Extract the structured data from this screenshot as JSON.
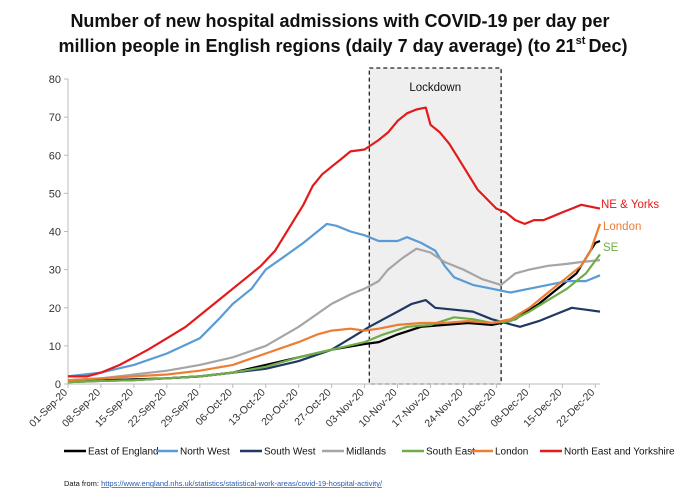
{
  "chart_data": {
    "type": "line",
    "title_lines": [
      "Number of new hospital admissions with COVID-19 per day per",
      "million people in English regions (daily 7 day average) (to 21",
      "st",
      "Dec)"
    ],
    "xlabel": "",
    "ylabel": "",
    "ylim": [
      0,
      80
    ],
    "yticks": [
      0,
      10,
      20,
      30,
      40,
      50,
      60,
      70,
      80
    ],
    "x_start": "01-Sep-20",
    "num_days": 113,
    "xtick_labels": [
      "01-Sep-20",
      "08-Sep-20",
      "15-Sep-20",
      "22-Sep-20",
      "29-Sep-20",
      "06-Oct-20",
      "13-Oct-20",
      "20-Oct-20",
      "27-Oct-20",
      "03-Nov-20",
      "10-Nov-20",
      "17-Nov-20",
      "24-Nov-20",
      "01-Dec-20",
      "08-Dec-20",
      "15-Dec-20",
      "22-Dec-20"
    ],
    "lockdown": {
      "label": "Lockdown",
      "start_day": 64,
      "end_day": 92
    },
    "series": [
      {
        "name": "East of England",
        "color": "#000000",
        "points": [
          [
            0,
            1
          ],
          [
            7,
            1
          ],
          [
            14,
            1.2
          ],
          [
            21,
            1.5
          ],
          [
            28,
            2
          ],
          [
            35,
            3
          ],
          [
            42,
            5
          ],
          [
            49,
            7
          ],
          [
            56,
            9
          ],
          [
            63,
            10.5
          ],
          [
            66,
            11
          ],
          [
            70,
            13
          ],
          [
            75,
            15
          ],
          [
            80,
            15.5
          ],
          [
            85,
            16
          ],
          [
            90,
            15.5
          ],
          [
            92,
            16
          ],
          [
            95,
            17
          ],
          [
            100,
            21
          ],
          [
            105,
            26
          ],
          [
            108,
            29
          ],
          [
            110,
            33
          ],
          [
            112,
            37
          ],
          [
            113,
            37.5
          ]
        ]
      },
      {
        "name": "North West",
        "color": "#5b9bd5",
        "points": [
          [
            0,
            2
          ],
          [
            7,
            3
          ],
          [
            14,
            5
          ],
          [
            21,
            8
          ],
          [
            28,
            12
          ],
          [
            32,
            17
          ],
          [
            35,
            21
          ],
          [
            39,
            25
          ],
          [
            42,
            30
          ],
          [
            46,
            33.5
          ],
          [
            50,
            37
          ],
          [
            53,
            40
          ],
          [
            55,
            42
          ],
          [
            57,
            41.5
          ],
          [
            60,
            40
          ],
          [
            63,
            39
          ],
          [
            66,
            37.5
          ],
          [
            70,
            37.5
          ],
          [
            72,
            38.5
          ],
          [
            75,
            37
          ],
          [
            78,
            35
          ],
          [
            80,
            31
          ],
          [
            82,
            28
          ],
          [
            86,
            26
          ],
          [
            90,
            25
          ],
          [
            94,
            24
          ],
          [
            98,
            25
          ],
          [
            102,
            26
          ],
          [
            106,
            27
          ],
          [
            110,
            27
          ],
          [
            113,
            28.5
          ]
        ]
      },
      {
        "name": "South West",
        "color": "#1f3864",
        "points": [
          [
            0,
            0.5
          ],
          [
            7,
            0.8
          ],
          [
            14,
            1
          ],
          [
            21,
            1.5
          ],
          [
            28,
            2
          ],
          [
            35,
            3
          ],
          [
            42,
            4
          ],
          [
            49,
            6
          ],
          [
            56,
            9
          ],
          [
            60,
            12
          ],
          [
            64,
            15
          ],
          [
            67,
            17
          ],
          [
            70,
            19
          ],
          [
            73,
            21
          ],
          [
            76,
            22
          ],
          [
            78,
            20
          ],
          [
            82,
            19.5
          ],
          [
            86,
            19
          ],
          [
            90,
            17
          ],
          [
            93,
            16
          ],
          [
            96,
            15
          ],
          [
            100,
            16.5
          ],
          [
            104,
            18.5
          ],
          [
            107,
            20
          ],
          [
            110,
            19.5
          ],
          [
            113,
            19
          ]
        ]
      },
      {
        "name": "Midlands",
        "color": "#a5a5a5",
        "points": [
          [
            0,
            1
          ],
          [
            7,
            1.5
          ],
          [
            14,
            2.5
          ],
          [
            21,
            3.5
          ],
          [
            28,
            5
          ],
          [
            35,
            7
          ],
          [
            42,
            10
          ],
          [
            49,
            15
          ],
          [
            56,
            21
          ],
          [
            60,
            23.5
          ],
          [
            63,
            25
          ],
          [
            66,
            27
          ],
          [
            68,
            30
          ],
          [
            71,
            33
          ],
          [
            74,
            35.5
          ],
          [
            77,
            34.5
          ],
          [
            80,
            32
          ],
          [
            84,
            30
          ],
          [
            88,
            27.5
          ],
          [
            92,
            26
          ],
          [
            95,
            29
          ],
          [
            98,
            30
          ],
          [
            102,
            31
          ],
          [
            106,
            31.5
          ],
          [
            109,
            32
          ],
          [
            113,
            32.5
          ]
        ]
      },
      {
        "name": "South East",
        "color": "#70ad47",
        "points": [
          [
            0,
            0.5
          ],
          [
            7,
            0.8
          ],
          [
            14,
            1
          ],
          [
            21,
            1.5
          ],
          [
            28,
            2
          ],
          [
            35,
            3
          ],
          [
            42,
            4.5
          ],
          [
            49,
            7
          ],
          [
            56,
            9
          ],
          [
            63,
            11
          ],
          [
            67,
            13
          ],
          [
            72,
            15
          ],
          [
            77,
            15.5
          ],
          [
            82,
            17.5
          ],
          [
            86,
            17
          ],
          [
            90,
            16
          ],
          [
            94,
            16.5
          ],
          [
            98,
            19
          ],
          [
            102,
            22
          ],
          [
            106,
            25
          ],
          [
            110,
            29
          ],
          [
            113,
            34
          ]
        ]
      },
      {
        "name": "London",
        "color": "#ed7d31",
        "points": [
          [
            0,
            1
          ],
          [
            7,
            1.5
          ],
          [
            14,
            2
          ],
          [
            21,
            2.5
          ],
          [
            28,
            3.5
          ],
          [
            35,
            5
          ],
          [
            42,
            8
          ],
          [
            49,
            11
          ],
          [
            53,
            13
          ],
          [
            56,
            14
          ],
          [
            60,
            14.5
          ],
          [
            63,
            14
          ],
          [
            66,
            14.5
          ],
          [
            70,
            15.5
          ],
          [
            75,
            16
          ],
          [
            80,
            16
          ],
          [
            85,
            16.5
          ],
          [
            90,
            16
          ],
          [
            94,
            17
          ],
          [
            98,
            20
          ],
          [
            102,
            24
          ],
          [
            106,
            28
          ],
          [
            109,
            31
          ],
          [
            111,
            35
          ],
          [
            113,
            42
          ]
        ]
      },
      {
        "name": "North East and Yorkshire",
        "color": "#e31a1c",
        "points": [
          [
            0,
            2
          ],
          [
            4,
            2
          ],
          [
            7,
            3
          ],
          [
            11,
            5
          ],
          [
            14,
            7
          ],
          [
            17,
            9
          ],
          [
            21,
            12
          ],
          [
            25,
            15
          ],
          [
            28,
            18
          ],
          [
            32,
            22
          ],
          [
            35,
            25
          ],
          [
            38,
            28
          ],
          [
            41,
            31
          ],
          [
            44,
            35
          ],
          [
            47,
            41
          ],
          [
            50,
            47
          ],
          [
            52,
            52
          ],
          [
            54,
            55
          ],
          [
            56,
            57
          ],
          [
            58,
            59
          ],
          [
            60,
            61
          ],
          [
            63,
            61.5
          ],
          [
            66,
            64
          ],
          [
            68,
            66
          ],
          [
            70,
            69
          ],
          [
            72,
            71
          ],
          [
            74,
            72
          ],
          [
            76,
            72.5
          ],
          [
            77,
            68
          ],
          [
            79,
            66
          ],
          [
            81,
            63
          ],
          [
            83,
            59
          ],
          [
            85,
            55
          ],
          [
            87,
            51
          ],
          [
            89,
            48.5
          ],
          [
            91,
            46
          ],
          [
            93,
            45
          ],
          [
            95,
            43
          ],
          [
            97,
            42
          ],
          [
            99,
            43
          ],
          [
            101,
            43
          ],
          [
            103,
            44
          ],
          [
            105,
            45
          ],
          [
            107,
            46
          ],
          [
            109,
            47
          ],
          [
            111,
            46.5
          ],
          [
            113,
            46
          ]
        ]
      }
    ],
    "annotations": [
      {
        "text": "NE & Yorks",
        "color": "#e31a1c"
      },
      {
        "text": "London",
        "color": "#ed7d31"
      },
      {
        "text": "SE",
        "color": "#70ad47"
      }
    ],
    "source_prefix": "Data from: ",
    "source_link": "https://www.england.nhs.uk/statistics/statistical-work-areas/covid-19-hospital-activity/"
  }
}
